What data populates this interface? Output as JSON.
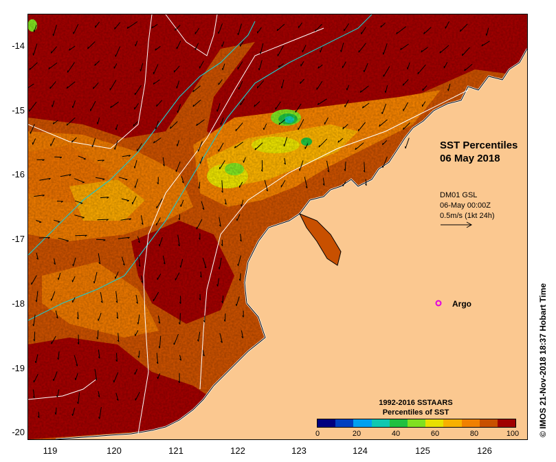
{
  "map": {
    "title_line1": "SST Percentiles",
    "title_line2": "06 May 2018",
    "model": {
      "line1": "DM01 GSL",
      "line2": "06-May 00:00Z",
      "line3": "0.5m/s (1kt 24h)"
    },
    "argo_label": "Argo",
    "legend_title_line1": "1992-2016 SSTAARS",
    "legend_title_line2": "Percentiles of SST",
    "colorbar_ticks": [
      "0",
      "20",
      "40",
      "60",
      "80",
      "100"
    ],
    "colorbar_colors": [
      "#00007f",
      "#0040c0",
      "#00a0f0",
      "#10c8b0",
      "#20c040",
      "#80e020",
      "#e8e000",
      "#f8b000",
      "#f08000",
      "#c85000",
      "#a00000"
    ],
    "lat_ticks": [
      "-14",
      "-15",
      "-16",
      "-17",
      "-18",
      "-19",
      "-20"
    ],
    "lon_ticks": [
      "119",
      "120",
      "121",
      "122",
      "123",
      "124",
      "125",
      "126"
    ],
    "credit": "© IMOS 21-Nov-2018 18:37 Hobart Time",
    "land_color": "#fbc890",
    "argo_color": "#e000e0"
  }
}
